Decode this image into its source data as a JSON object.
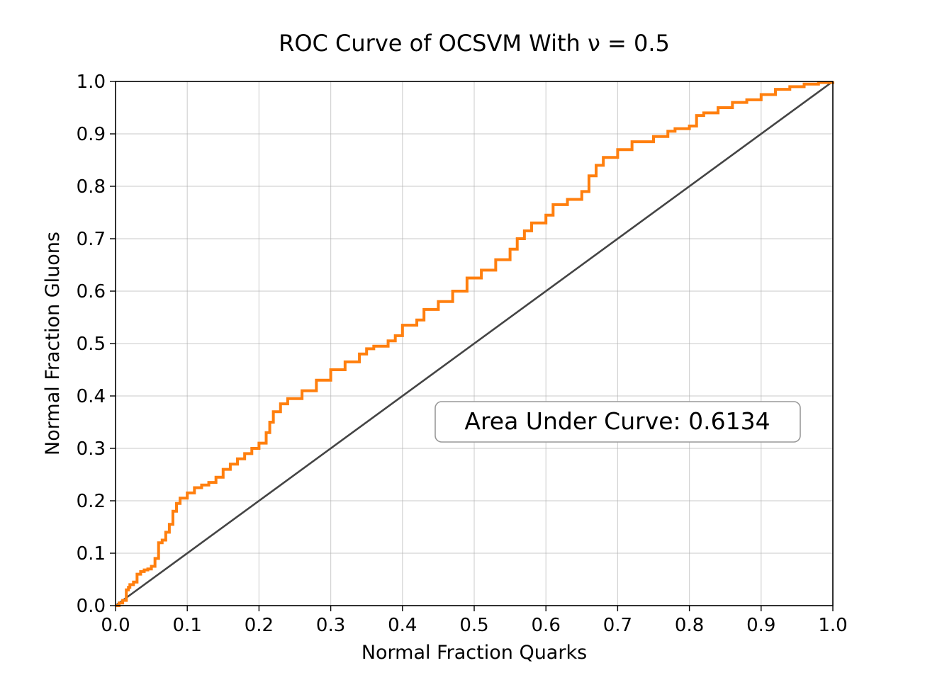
{
  "chart_data": {
    "type": "line",
    "title": "ROC Curve of OCSVM With ν = 0.5",
    "xlabel": "Normal Fraction Quarks",
    "ylabel": "Normal Fraction Gluons",
    "xlim": [
      0.0,
      1.0
    ],
    "ylim": [
      0.0,
      1.0
    ],
    "xticks": [
      "0.0",
      "0.1",
      "0.2",
      "0.3",
      "0.4",
      "0.5",
      "0.6",
      "0.7",
      "0.8",
      "0.9",
      "1.0"
    ],
    "yticks": [
      "0.0",
      "0.1",
      "0.2",
      "0.3",
      "0.4",
      "0.5",
      "0.6",
      "0.7",
      "0.8",
      "0.9",
      "1.0"
    ],
    "grid": true,
    "annotation": "Area Under Curve: 0.6134",
    "colors": {
      "roc": "#ff7f0e",
      "diagonal": "#444444"
    },
    "series": [
      {
        "x": [
          0.0,
          0.005,
          0.01,
          0.015,
          0.018,
          0.02,
          0.025,
          0.03,
          0.035,
          0.04,
          0.045,
          0.05,
          0.055,
          0.06,
          0.065,
          0.07,
          0.075,
          0.08,
          0.085,
          0.09,
          0.1,
          0.11,
          0.12,
          0.13,
          0.14,
          0.15,
          0.16,
          0.17,
          0.18,
          0.19,
          0.2,
          0.21,
          0.215,
          0.22,
          0.23,
          0.24,
          0.26,
          0.28,
          0.3,
          0.32,
          0.34,
          0.35,
          0.36,
          0.38,
          0.39,
          0.4,
          0.42,
          0.43,
          0.45,
          0.47,
          0.49,
          0.51,
          0.53,
          0.55,
          0.56,
          0.57,
          0.58,
          0.6,
          0.61,
          0.63,
          0.65,
          0.66,
          0.67,
          0.68,
          0.7,
          0.72,
          0.73,
          0.75,
          0.77,
          0.78,
          0.8,
          0.81,
          0.82,
          0.84,
          0.86,
          0.88,
          0.9,
          0.92,
          0.94,
          0.96,
          0.98,
          1.0
        ],
        "y": [
          0.0,
          0.005,
          0.01,
          0.03,
          0.035,
          0.04,
          0.045,
          0.06,
          0.065,
          0.068,
          0.07,
          0.075,
          0.09,
          0.12,
          0.125,
          0.14,
          0.155,
          0.18,
          0.195,
          0.205,
          0.215,
          0.225,
          0.23,
          0.235,
          0.245,
          0.26,
          0.27,
          0.28,
          0.29,
          0.3,
          0.31,
          0.33,
          0.35,
          0.37,
          0.385,
          0.395,
          0.41,
          0.43,
          0.45,
          0.465,
          0.48,
          0.49,
          0.495,
          0.505,
          0.515,
          0.535,
          0.545,
          0.565,
          0.58,
          0.6,
          0.625,
          0.64,
          0.66,
          0.68,
          0.7,
          0.715,
          0.73,
          0.745,
          0.765,
          0.775,
          0.79,
          0.82,
          0.84,
          0.855,
          0.87,
          0.885,
          0.885,
          0.895,
          0.905,
          0.91,
          0.915,
          0.935,
          0.94,
          0.95,
          0.96,
          0.965,
          0.975,
          0.985,
          0.99,
          0.995,
          0.998,
          1.0
        ]
      },
      {
        "x": [
          0.0,
          1.0
        ],
        "y": [
          0.0,
          1.0
        ]
      }
    ]
  }
}
